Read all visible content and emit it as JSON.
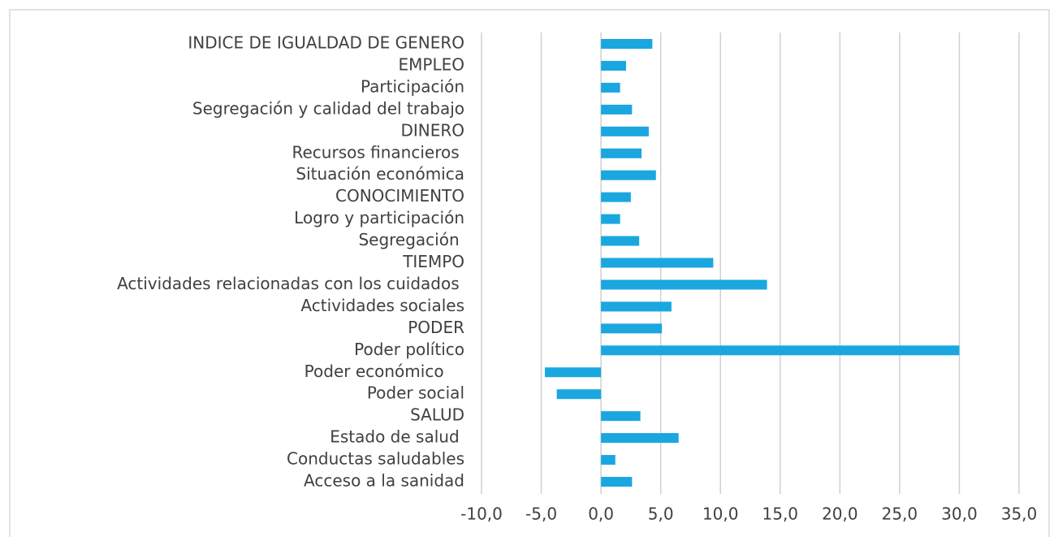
{
  "chart_data": {
    "type": "barh",
    "categories": [
      "INDICE DE IGUALDAD DE GENERO",
      "EMPLEO",
      "Participación",
      "Segregación y calidad del trabajo",
      "DINERO",
      "Recursos financieros ",
      "Situación económica",
      "CONOCIMIENTO",
      "Logro y participación",
      "Segregación ",
      "TIEMPO",
      "Actividades relacionadas con los cuidados ",
      "Actividades sociales",
      "PODER",
      "Poder político",
      "Poder económico    ",
      "Poder social",
      "SALUD",
      "Estado de salud ",
      "Conductas saludables",
      "Acceso a la sanidad"
    ],
    "values": [
      4.3,
      2.1,
      1.6,
      2.6,
      4.0,
      3.4,
      4.6,
      2.5,
      1.6,
      3.2,
      9.4,
      13.9,
      5.9,
      5.1,
      30.0,
      -4.7,
      -3.7,
      3.3,
      6.5,
      1.2,
      2.6
    ],
    "color": "#1aa7e0",
    "xlim": [
      -10,
      35
    ],
    "xticks": [
      {
        "value": -10,
        "label": "-10,0"
      },
      {
        "value": -5,
        "label": "-5,0"
      },
      {
        "value": 0,
        "label": "0,0"
      },
      {
        "value": 5,
        "label": "5,0"
      },
      {
        "value": 10,
        "label": "10,0"
      },
      {
        "value": 15,
        "label": "15,0"
      },
      {
        "value": 20,
        "label": "20,0"
      },
      {
        "value": 25,
        "label": "25,0"
      },
      {
        "value": 30,
        "label": "30,0"
      },
      {
        "value": 35,
        "label": "35,0"
      }
    ],
    "grid": true
  }
}
